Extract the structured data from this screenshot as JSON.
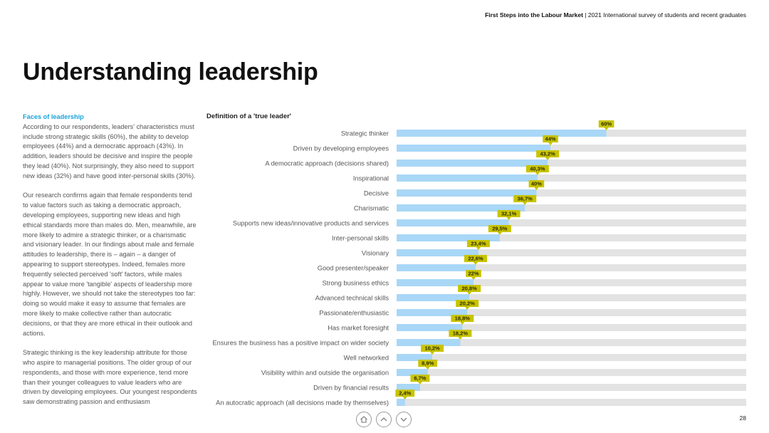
{
  "header": {
    "report_title": "First Steps into the Labour Market",
    "separator": " | ",
    "report_subtitle": "2021 International survey of students and recent graduates"
  },
  "page_title": "Understanding leadership",
  "left_column": {
    "heading": "Faces of leadership",
    "paragraphs": [
      "According to our respondents, leaders' characteristics must include strong strategic skills (60%), the ability to develop employees (44%) and a democratic approach (43%). In addition, leaders should be decisive and inspire the people they lead (40%). Not surprisingly, they also need to support new ideas (32%) and have good inter-personal skills (30%).",
      "Our research confirms again that female respondents tend to value factors such as taking a democratic approach, developing employees, supporting new ideas and high ethical standards more than males do. Men, meanwhile, are more likely to admire a strategic thinker, or a charismatic and visionary leader. In our findings about male and female attitudes to leadership, there is – again – a danger of appearing to support stereotypes. Indeed, females more frequently selected perceived 'soft' factors, while males appear to value more 'tangible' aspects of leadership more highly. However, we should not take the stereotypes too far: doing so would make it easy to assume that females are more likely to make collective rather than autocratic decisions, or that they are more ethical in their outlook and actions.",
      "Strategic thinking is the key leadership attribute for those who aspire to managerial positions. The older group of our respondents, and those with more experience, tend more than their younger colleagues to value leaders who are driven by developing employees. Our youngest respondents saw demonstrating passion and enthusiasm"
    ]
  },
  "chart_data": {
    "type": "bar",
    "orientation": "horizontal",
    "title": "Definition of a 'true leader'",
    "xlim": [
      0,
      100
    ],
    "categories": [
      "Strategic thinker",
      "Driven by developing employees",
      "A democratic  approach (decisions shared)",
      "Inspirational",
      "Decisive",
      "Charismatic",
      "Supports new ideas/innovative products and services",
      "Inter-personal skills",
      "Visionary",
      "Good presenter/speaker",
      "Strong business ethics",
      "Advanced technical skills",
      "Passionate/enthusiastic",
      "Has market foresight",
      "Ensures the business has a positive impact on wider society",
      "Well networked",
      "Visibility within and outside the organisation",
      "Driven by financial results",
      "An autocratic approach (all decisions made by themselves)"
    ],
    "values": [
      60,
      44,
      43.2,
      40.3,
      40,
      36.7,
      32.1,
      29.5,
      23.4,
      22.6,
      22,
      20.8,
      20.2,
      18.8,
      18.2,
      10.2,
      8.9,
      6.7,
      2.4
    ],
    "labels": [
      "60%",
      "44%",
      "43,2%",
      "40,3%",
      "40%",
      "36,7%",
      "32,1%",
      "29,5%",
      "23,4%",
      "22,6%",
      "22%",
      "20,8%",
      "20,2%",
      "18,8%",
      "18,2%",
      "10,2%",
      "8,9%",
      "6,7%",
      "2,4%"
    ],
    "colors": {
      "bar": "#a9d7f7",
      "track": "#e3e3e3",
      "label_bg": "#c8c400",
      "label_text": "#2b2b00",
      "category_text": "#555555"
    }
  },
  "navigation": {
    "home_icon": "home-icon",
    "prev_icon": "chevron-up-icon",
    "next_icon": "chevron-down-icon"
  },
  "page_number": "28"
}
